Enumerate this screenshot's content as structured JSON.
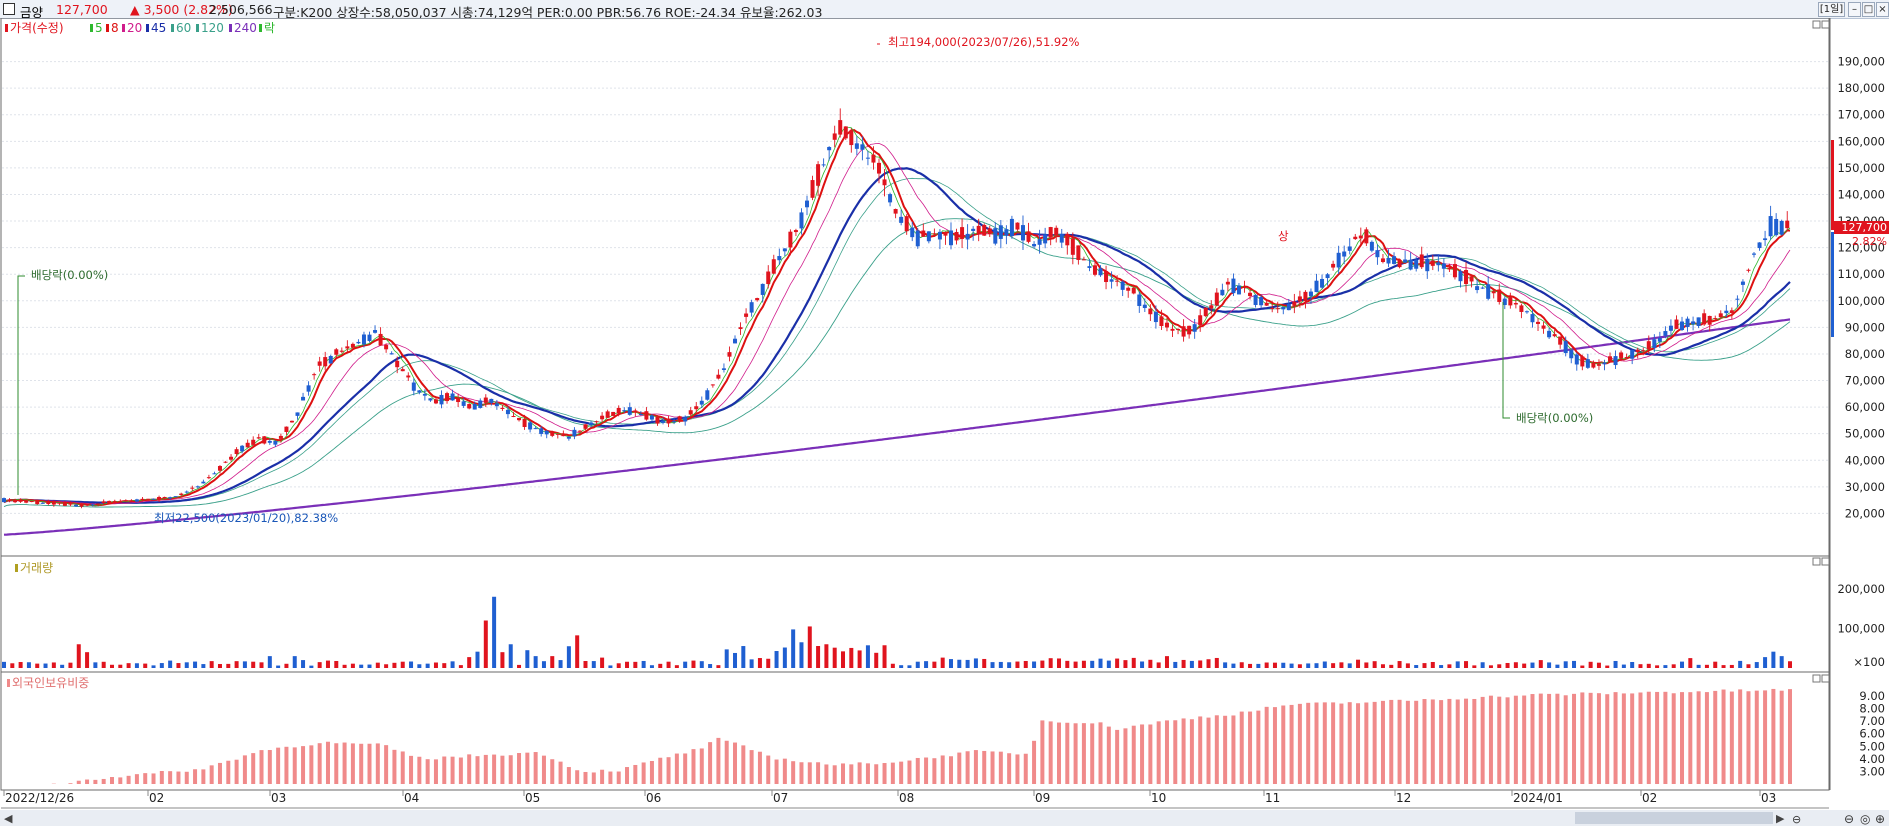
{
  "header": {
    "stock_name": "금양",
    "price": "127,700",
    "change": "▲ 3,500 (2.82%)",
    "volume": "2,506,566",
    "info": "구분:K200 상장수:58,050,037 시총:74,129억 PER:0.00 PBR:56.76 ROE:-24.34 유보율:262.03",
    "period_button": "[1일]"
  },
  "colors": {
    "up": "#e0141e",
    "down": "#1f5fd1",
    "ma5": "#2eb82e",
    "ma20": "#d01c8b",
    "ma45": "#1a2fa8",
    "ma60": "#3aa08a",
    "ma240": "#7a2fb8",
    "ma8": "#dd1111",
    "foreign": "#f08a8a"
  },
  "chart_data": [
    {
      "type": "candlestick",
      "title": "가격(수정)",
      "legend": [
        "5",
        "8",
        "20",
        "45",
        "60",
        "120",
        "240",
        "락"
      ],
      "ylim": [
        10000,
        200000
      ],
      "y_ticks": [
        "20,000",
        "30,000",
        "40,000",
        "50,000",
        "60,000",
        "70,000",
        "80,000",
        "90,000",
        "100,000",
        "110,000",
        "120,000",
        "130,000",
        "140,000",
        "150,000",
        "160,000",
        "170,000",
        "180,000",
        "190,000"
      ],
      "x_labels": [
        "2022/12/26",
        "02",
        "03",
        "04",
        "05",
        "06",
        "07",
        "08",
        "09",
        "10",
        "11",
        "12",
        "2024/01",
        "02",
        "03"
      ],
      "price_path": [
        [
          0,
          25000
        ],
        [
          15,
          24000
        ],
        [
          22,
          23500
        ],
        [
          29,
          23000
        ],
        [
          36,
          24000
        ],
        [
          43,
          24500
        ],
        [
          50,
          25000
        ],
        [
          57,
          25500
        ],
        [
          64,
          27000
        ],
        [
          71,
          31000
        ],
        [
          78,
          37000
        ],
        [
          85,
          44000
        ],
        [
          92,
          48000
        ],
        [
          99,
          47000
        ],
        [
          106,
          58000
        ],
        [
          113,
          75000
        ],
        [
          120,
          80000
        ],
        [
          127,
          84000
        ],
        [
          134,
          88000
        ],
        [
          141,
          78000
        ],
        [
          148,
          68000
        ],
        [
          155,
          62000
        ],
        [
          162,
          64000
        ],
        [
          169,
          60000
        ],
        [
          176,
          63000
        ],
        [
          183,
          57000
        ],
        [
          190,
          53000
        ],
        [
          197,
          50000
        ],
        [
          204,
          49000
        ],
        [
          211,
          53000
        ],
        [
          218,
          57000
        ],
        [
          225,
          59000
        ],
        [
          232,
          57000
        ],
        [
          239,
          54000
        ],
        [
          246,
          56000
        ],
        [
          253,
          63000
        ],
        [
          260,
          75000
        ],
        [
          267,
          92000
        ],
        [
          274,
          105000
        ],
        [
          281,
          118000
        ],
        [
          288,
          130000
        ],
        [
          295,
          150000
        ],
        [
          302,
          164000
        ],
        [
          309,
          158000
        ],
        [
          316,
          150000
        ],
        [
          323,
          132000
        ],
        [
          330,
          124000
        ],
        [
          337,
          126000
        ],
        [
          344,
          123000
        ],
        [
          351,
          127000
        ],
        [
          358,
          125000
        ],
        [
          365,
          128000
        ],
        [
          372,
          122000
        ],
        [
          379,
          126000
        ],
        [
          386,
          120000
        ],
        [
          393,
          112000
        ],
        [
          400,
          108000
        ],
        [
          407,
          104000
        ],
        [
          414,
          95000
        ],
        [
          421,
          90000
        ],
        [
          428,
          88000
        ],
        [
          435,
          96000
        ],
        [
          442,
          106000
        ],
        [
          449,
          104000
        ],
        [
          456,
          98000
        ],
        [
          463,
          97000
        ],
        [
          470,
          102000
        ],
        [
          477,
          108000
        ],
        [
          484,
          118000
        ],
        [
          491,
          126000
        ],
        [
          498,
          116000
        ],
        [
          505,
          114000
        ],
        [
          512,
          115000
        ],
        [
          519,
          113000
        ],
        [
          526,
          110000
        ],
        [
          533,
          105000
        ],
        [
          540,
          102000
        ],
        [
          547,
          98000
        ],
        [
          554,
          92000
        ],
        [
          561,
          86000
        ],
        [
          568,
          78000
        ],
        [
          575,
          75000
        ],
        [
          582,
          78000
        ],
        [
          589,
          80000
        ],
        [
          596,
          84000
        ],
        [
          603,
          90000
        ],
        [
          610,
          92000
        ],
        [
          617,
          93000
        ],
        [
          624,
          96000
        ],
        [
          631,
          115000
        ],
        [
          638,
          128000
        ],
        [
          645,
          127700
        ]
      ],
      "annotations": [
        "최고194,000(2023/07/26),51.92%",
        "최저22,500(2023/01/20),82.38%",
        "배당락(0.00%)",
        "배당락(0.00%)",
        "상"
      ],
      "last_price_label": "127,700",
      "last_change_label": "2.82%"
    },
    {
      "type": "bar",
      "title": "거래량",
      "y_ticks": [
        "200,000",
        "100,000",
        "×100"
      ]
    },
    {
      "type": "bar",
      "title": "외국인보유비중",
      "y_ticks": [
        "9.00",
        "8.00",
        "7.00",
        "6.00",
        "5.00",
        "4.00",
        "3.00"
      ],
      "levels": [
        [
          0,
          1.4
        ],
        [
          50,
          2.5
        ],
        [
          100,
          3.2
        ],
        [
          130,
          4.7
        ],
        [
          160,
          5.3
        ],
        [
          190,
          5.1
        ],
        [
          210,
          4.0
        ],
        [
          240,
          4.3
        ],
        [
          270,
          4.5
        ],
        [
          290,
          3.0
        ],
        [
          310,
          3.1
        ],
        [
          330,
          4.0
        ],
        [
          350,
          4.8
        ],
        [
          360,
          5.6
        ],
        [
          390,
          4.0
        ],
        [
          420,
          3.5
        ],
        [
          450,
          3.8
        ],
        [
          490,
          4.6
        ],
        [
          516,
          4.4
        ],
        [
          522,
          7.1
        ],
        [
          552,
          6.8
        ],
        [
          560,
          6.4
        ],
        [
          580,
          6.9
        ],
        [
          600,
          7.3
        ],
        [
          620,
          7.6
        ],
        [
          645,
          8.3
        ],
        [
          700,
          8.6
        ],
        [
          770,
          9.1
        ],
        [
          830,
          9.3
        ],
        [
          900,
          9.5
        ]
      ]
    }
  ]
}
